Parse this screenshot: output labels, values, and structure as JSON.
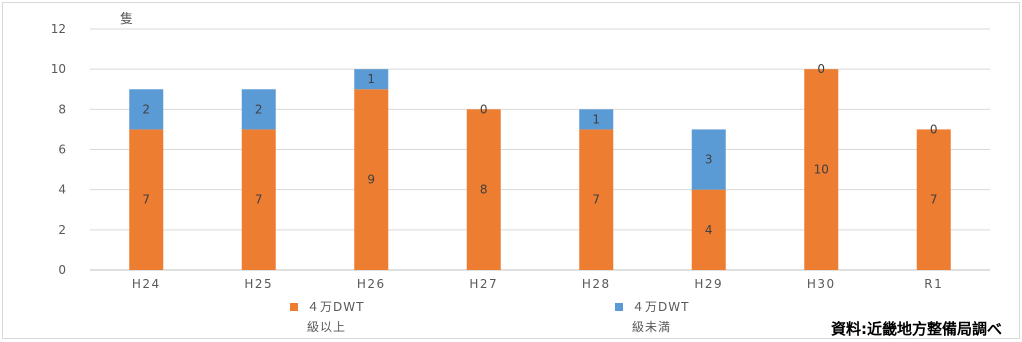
{
  "chart_data": {
    "type": "bar",
    "stacked": true,
    "unit_label": "隻",
    "categories": [
      "H24",
      "H25",
      "H26",
      "H27",
      "H28",
      "H29",
      "H30",
      "R1"
    ],
    "series": [
      {
        "name": "４万DWT級以上",
        "legend_lines": [
          "４万DWT",
          "級以上"
        ],
        "color": "#ED7D31",
        "values": [
          7,
          7,
          9,
          8,
          7,
          4,
          10,
          7
        ]
      },
      {
        "name": "４万DWT級未満",
        "legend_lines": [
          "４万DWT",
          "級未満"
        ],
        "color": "#5B9BD5",
        "values": [
          2,
          2,
          1,
          0,
          1,
          3,
          0,
          0
        ]
      }
    ],
    "ylim": [
      0,
      12
    ],
    "yticks": [
      0,
      2,
      4,
      6,
      8,
      10,
      12
    ],
    "grid": true,
    "legend_position": "bottom"
  },
  "credit": "資料:近畿地方整備局調べ"
}
